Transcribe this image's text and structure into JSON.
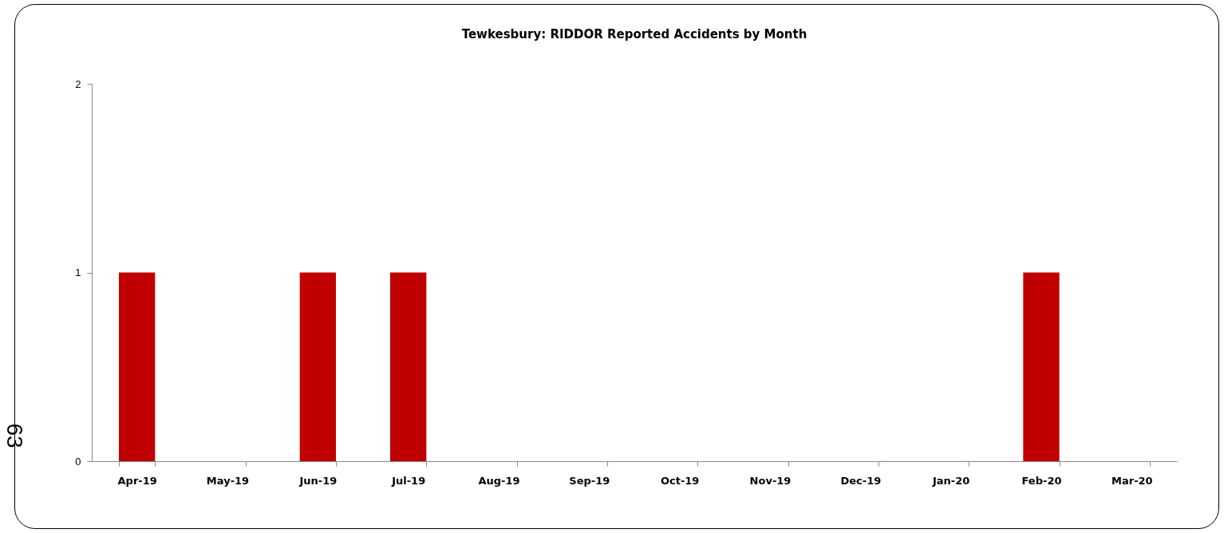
{
  "chart_data": {
    "type": "bar",
    "title": "Tewkesbury: RIDDOR Reported Accidents by Month",
    "categories": [
      "Apr-19",
      "May-19",
      "Jun-19",
      "Jul-19",
      "Aug-19",
      "Sep-19",
      "Oct-19",
      "Nov-19",
      "Dec-19",
      "Jan-20",
      "Feb-20",
      "Mar-20"
    ],
    "values": [
      1,
      0,
      1,
      1,
      0,
      0,
      0,
      0,
      0,
      0,
      1,
      0
    ],
    "color": "#c00000",
    "ylim": [
      0,
      2
    ],
    "yticks": [
      0,
      1,
      2
    ],
    "grid": false,
    "annotations": [
      "63"
    ]
  }
}
